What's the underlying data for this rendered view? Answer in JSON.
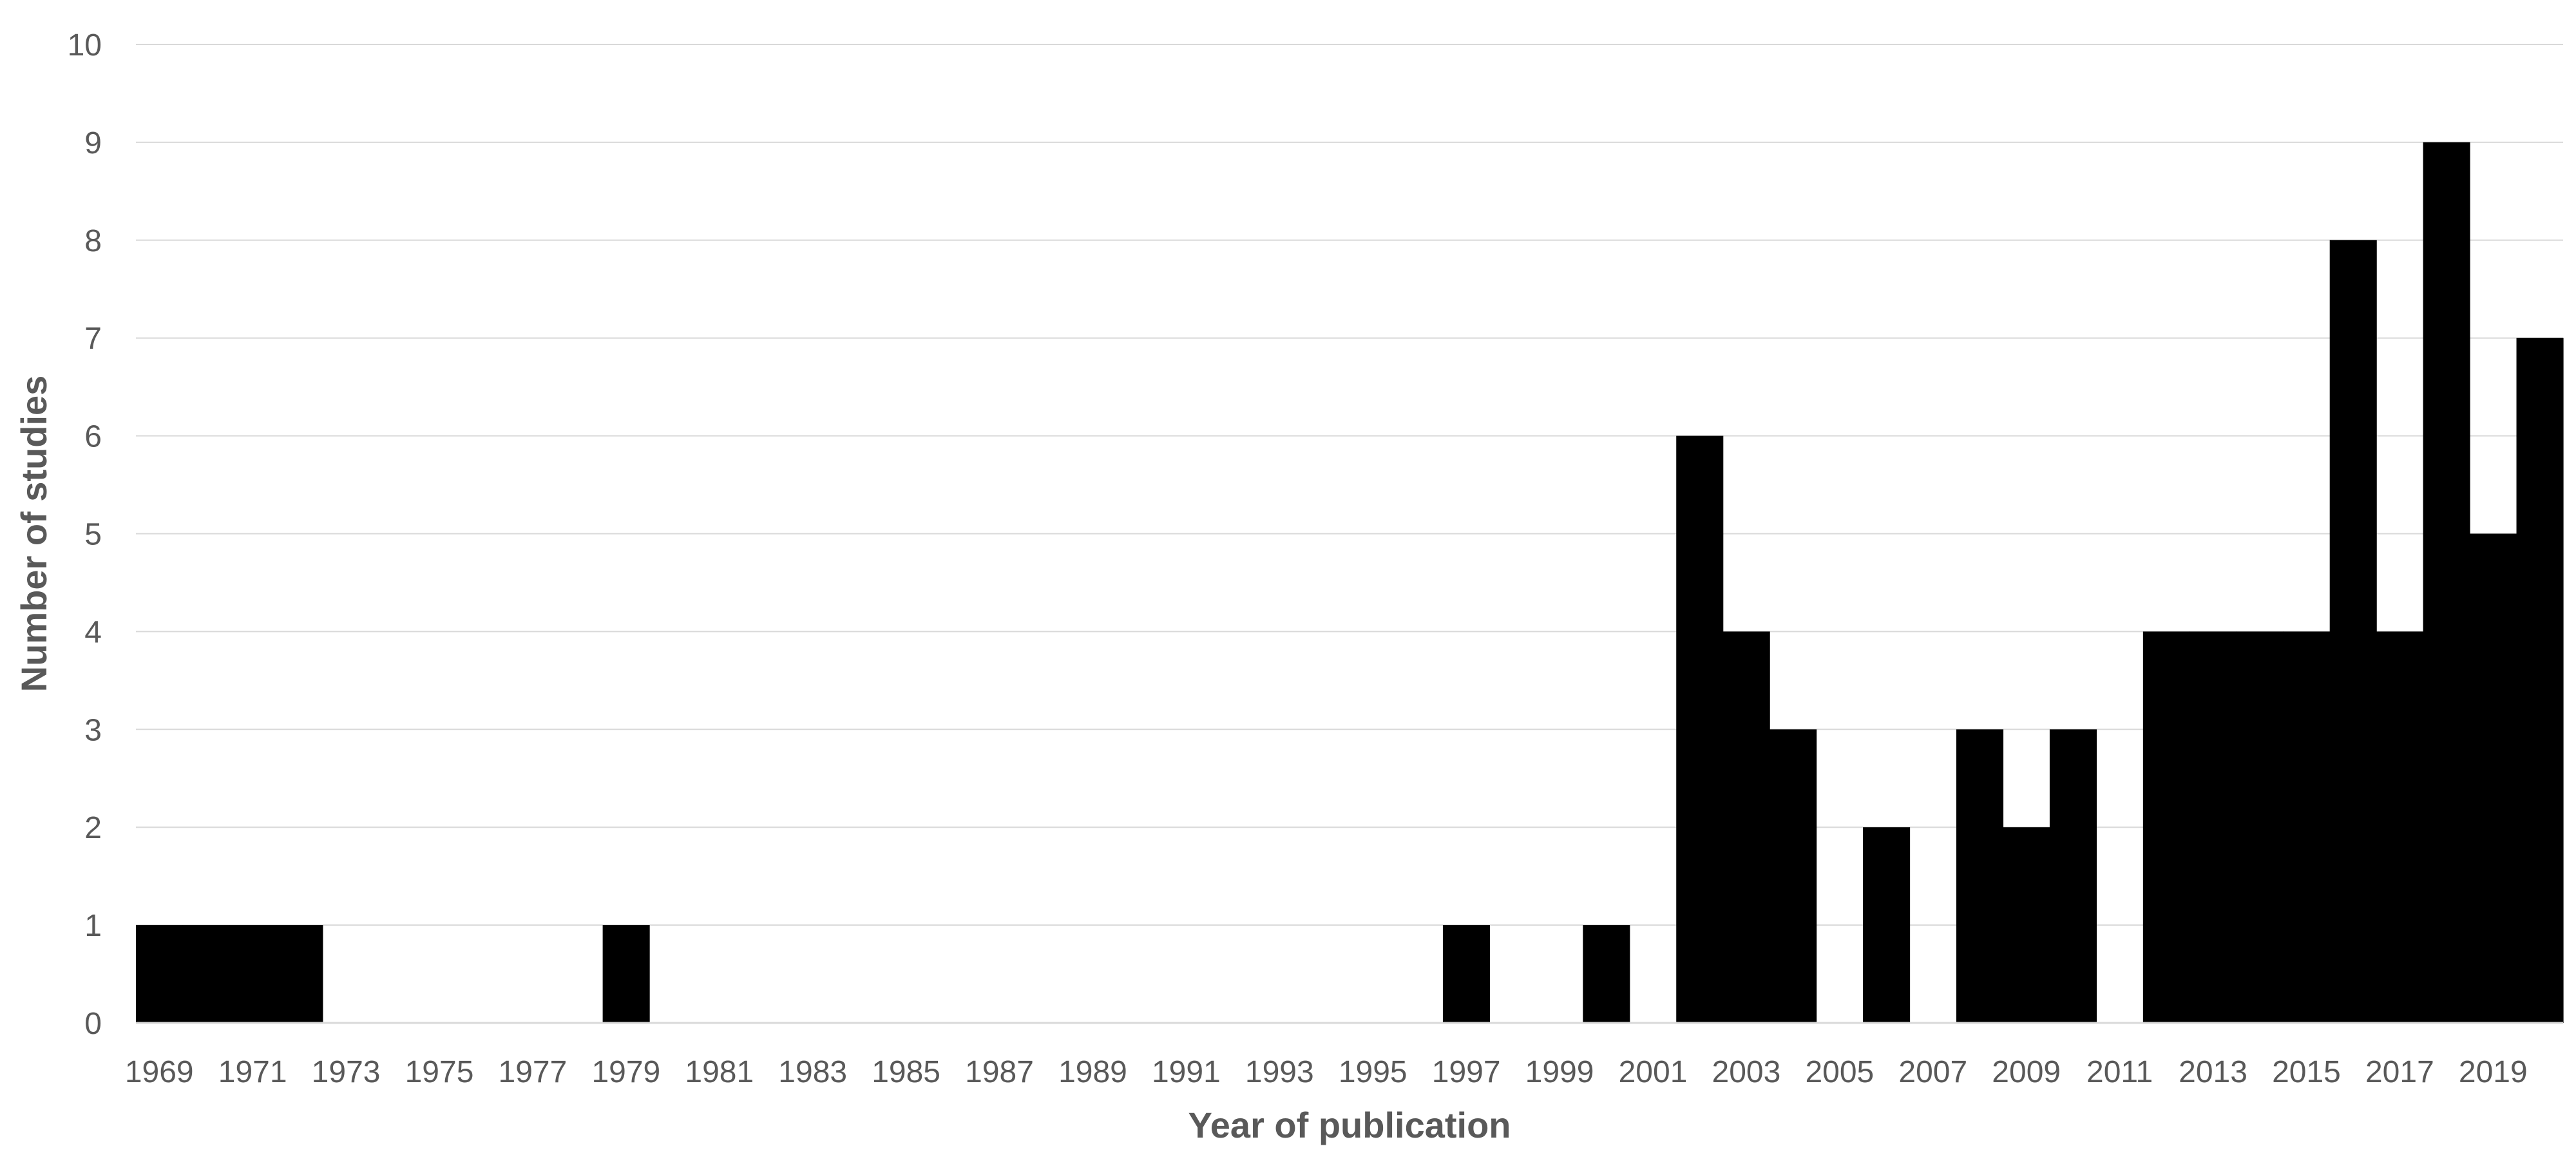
{
  "chart_data": {
    "type": "bar",
    "title": "",
    "xlabel": "Year of publication",
    "ylabel": "Number of studies",
    "ylim": [
      0,
      10
    ],
    "yticks": [
      0,
      1,
      2,
      3,
      4,
      5,
      6,
      7,
      8,
      9,
      10
    ],
    "grid": true,
    "legend": "none",
    "bar_color": "#000000",
    "categories": [
      "1969",
      "1970",
      "1971",
      "1972",
      "1973",
      "1974",
      "1975",
      "1976",
      "1977",
      "1978",
      "1979",
      "1980",
      "1981",
      "1982",
      "1983",
      "1984",
      "1985",
      "1986",
      "1987",
      "1988",
      "1989",
      "1990",
      "1991",
      "1992",
      "1993",
      "1994",
      "1995",
      "1996",
      "1997",
      "1998",
      "1999",
      "2000",
      "2001",
      "2002",
      "2003",
      "2004",
      "2005",
      "2006",
      "2007",
      "2008",
      "2009",
      "2010",
      "2011",
      "2012",
      "2013",
      "2014",
      "2015",
      "2016",
      "2017",
      "2018",
      "2019",
      "2020"
    ],
    "values": [
      1,
      1,
      1,
      1,
      0,
      0,
      0,
      0,
      0,
      0,
      1,
      0,
      0,
      0,
      0,
      0,
      0,
      0,
      0,
      0,
      0,
      0,
      0,
      0,
      0,
      0,
      0,
      0,
      1,
      0,
      0,
      1,
      0,
      6,
      4,
      3,
      0,
      2,
      0,
      3,
      2,
      3,
      0,
      4,
      4,
      4,
      4,
      8,
      4,
      9,
      5,
      7
    ],
    "x_tick_labels": [
      "1969",
      "1971",
      "1973",
      "1975",
      "1977",
      "1979",
      "1981",
      "1983",
      "1985",
      "1987",
      "1989",
      "1991",
      "1993",
      "1995",
      "1997",
      "1999",
      "2001",
      "2003",
      "2005",
      "2007",
      "2009",
      "2011",
      "2013",
      "2015",
      "2017",
      "2019"
    ]
  }
}
